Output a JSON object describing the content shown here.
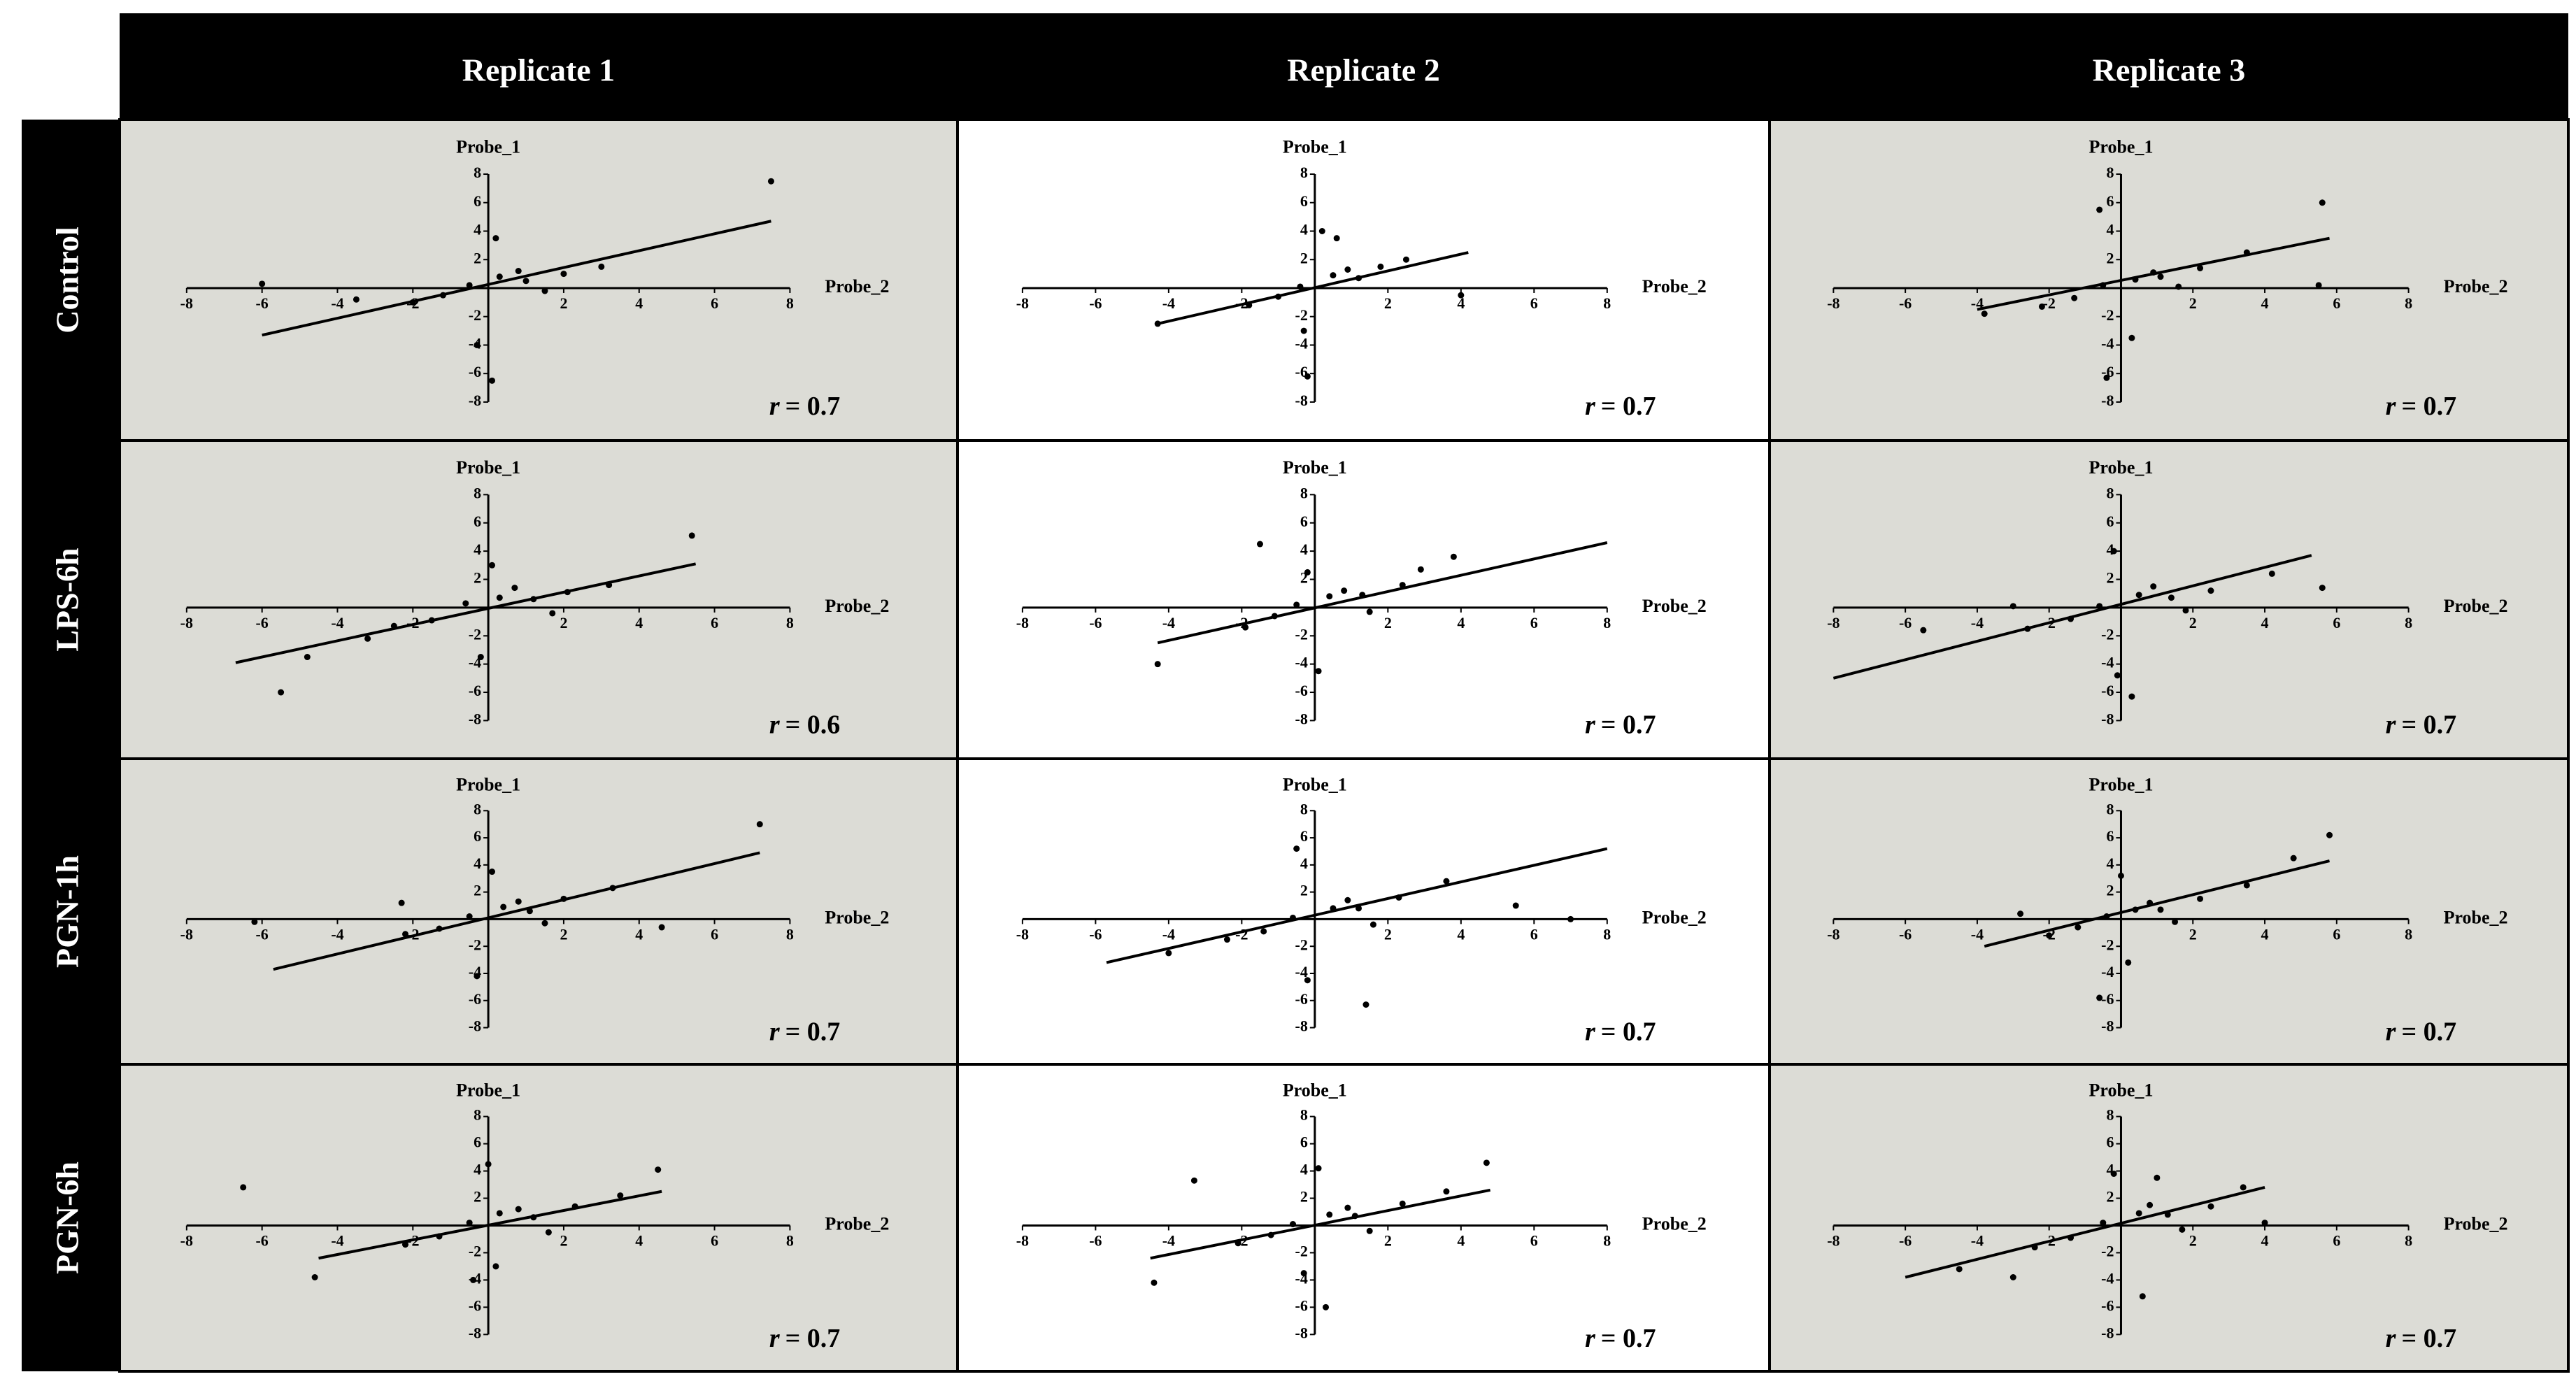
{
  "column_headers": [
    "Replicate 1",
    "Replicate 2",
    "Replicate 3"
  ],
  "row_labels": [
    "Control",
    "LPS-6h",
    "PGN-1h",
    "PGN-6h"
  ],
  "chart_data": [
    {
      "type": "scatter",
      "xlabel": "Probe_2",
      "ylabel": "Probe_1",
      "background": "#dcdcd6",
      "color": "#000000",
      "xlim": [
        -8,
        8
      ],
      "ylim": [
        -8,
        8
      ],
      "xticks": [
        -8,
        -6,
        -4,
        -2,
        2,
        4,
        6,
        8
      ],
      "yticks": [
        -8,
        -6,
        -4,
        -2,
        2,
        4,
        6,
        8
      ],
      "annotation": {
        "symbol": "r",
        "text": "= 0.7"
      },
      "x": [
        -0.5,
        0.3,
        1,
        -1.2,
        0.8,
        2,
        -2,
        1.5,
        0.2,
        3,
        -0.3,
        7.5,
        0.1,
        -3.5,
        -6
      ],
      "y": [
        0.2,
        0.8,
        0.5,
        -0.5,
        1.2,
        1,
        -1,
        -0.2,
        3.5,
        1.5,
        -4,
        7.5,
        -6.5,
        -0.8,
        0.3
      ],
      "fit_line": {
        "x": [
          -6,
          7.5
        ],
        "y": [
          -3.3,
          4.7
        ]
      }
    },
    {
      "type": "scatter",
      "xlabel": "Probe_2",
      "ylabel": "Probe_1",
      "background": "#ffffff",
      "color": "#000000",
      "xlim": [
        -8,
        8
      ],
      "ylim": [
        -8,
        8
      ],
      "xticks": [
        -8,
        -6,
        -4,
        -2,
        2,
        4,
        6,
        8
      ],
      "yticks": [
        -8,
        -6,
        -4,
        -2,
        2,
        4,
        6,
        8
      ],
      "annotation": {
        "symbol": "r",
        "text": "= 0.7"
      },
      "x": [
        -0.4,
        0.5,
        1.2,
        -1,
        0.9,
        1.8,
        -1.8,
        0.2,
        -0.3,
        2.5,
        4,
        -4.3,
        0.6,
        -0.2
      ],
      "y": [
        0.1,
        0.9,
        0.7,
        -0.6,
        1.3,
        1.5,
        -1.2,
        4,
        -3,
        2,
        -0.5,
        -2.5,
        3.5,
        -6.2
      ],
      "fit_line": {
        "x": [
          -4.3,
          4.2
        ],
        "y": [
          -2.5,
          2.5
        ]
      }
    },
    {
      "type": "scatter",
      "xlabel": "Probe_2",
      "ylabel": "Probe_1",
      "background": "#dcdcd6",
      "color": "#000000",
      "xlim": [
        -8,
        8
      ],
      "ylim": [
        -8,
        8
      ],
      "xticks": [
        -8,
        -6,
        -4,
        -2,
        2,
        4,
        6,
        8
      ],
      "yticks": [
        -8,
        -6,
        -4,
        -2,
        2,
        4,
        6,
        8
      ],
      "annotation": {
        "symbol": "r",
        "text": "= 0.7"
      },
      "x": [
        -0.5,
        0.4,
        1.1,
        -1.3,
        0.9,
        2.2,
        -2.2,
        1.6,
        -0.6,
        3.5,
        5.6,
        -3.8,
        0.3,
        -0.4,
        5.5
      ],
      "y": [
        0.2,
        0.6,
        0.8,
        -0.7,
        1.1,
        1.4,
        -1.3,
        0.1,
        5.5,
        2.5,
        6,
        -1.8,
        -3.5,
        -6.3,
        0.2
      ],
      "fit_line": {
        "x": [
          -4,
          5.8
        ],
        "y": [
          -1.5,
          3.5
        ]
      }
    },
    {
      "type": "scatter",
      "xlabel": "Probe_2",
      "ylabel": "Probe_1",
      "background": "#dcdcd6",
      "color": "#000000",
      "xlim": [
        -8,
        8
      ],
      "ylim": [
        -8,
        8
      ],
      "xticks": [
        -8,
        -6,
        -4,
        -2,
        2,
        4,
        6,
        8
      ],
      "yticks": [
        -8,
        -6,
        -4,
        -2,
        2,
        4,
        6,
        8
      ],
      "annotation": {
        "symbol": "r",
        "text": "= 0.6"
      },
      "x": [
        -0.6,
        0.3,
        1.2,
        -1.5,
        0.7,
        2.1,
        -2.5,
        1.7,
        0.1,
        3.2,
        -5.5,
        5.4,
        -0.2,
        -3.2,
        -4.8
      ],
      "y": [
        0.3,
        0.7,
        0.6,
        -0.9,
        1.4,
        1.1,
        -1.3,
        -0.4,
        3,
        1.6,
        -6,
        5.1,
        -3.5,
        -2.2,
        -3.5
      ],
      "fit_line": {
        "x": [
          -6.7,
          5.5
        ],
        "y": [
          -3.9,
          3.1
        ]
      }
    },
    {
      "type": "scatter",
      "xlabel": "Probe_2",
      "ylabel": "Probe_1",
      "background": "#ffffff",
      "color": "#000000",
      "xlim": [
        -8,
        8
      ],
      "ylim": [
        -8,
        8
      ],
      "xticks": [
        -8,
        -6,
        -4,
        -2,
        2,
        4,
        6,
        8
      ],
      "yticks": [
        -8,
        -6,
        -4,
        -2,
        2,
        4,
        6,
        8
      ],
      "annotation": {
        "symbol": "r",
        "text": "= 0.7"
      },
      "x": [
        -0.5,
        0.4,
        1.3,
        -1.1,
        0.8,
        2.4,
        -1.9,
        1.5,
        -1.5,
        3.8,
        -4.3,
        0.1,
        -0.2,
        2.9
      ],
      "y": [
        0.2,
        0.8,
        0.9,
        -0.6,
        1.2,
        1.6,
        -1.4,
        -0.3,
        4.5,
        3.6,
        -4,
        -4.5,
        2.5,
        2.7
      ],
      "fit_line": {
        "x": [
          -4.3,
          8
        ],
        "y": [
          -2.5,
          4.6
        ]
      }
    },
    {
      "type": "scatter",
      "xlabel": "Probe_2",
      "ylabel": "Probe_1",
      "background": "#dcdcd6",
      "color": "#000000",
      "xlim": [
        -8,
        8
      ],
      "ylim": [
        -8,
        8
      ],
      "xticks": [
        -8,
        -6,
        -4,
        -2,
        2,
        4,
        6,
        8
      ],
      "yticks": [
        -8,
        -6,
        -4,
        -2,
        2,
        4,
        6,
        8
      ],
      "annotation": {
        "symbol": "r",
        "text": "= 0.7"
      },
      "x": [
        -0.6,
        0.5,
        1.4,
        -1.4,
        0.9,
        2.5,
        -2.6,
        1.8,
        -0.2,
        4.2,
        5.6,
        -5.5,
        -3,
        0.3,
        -0.1
      ],
      "y": [
        0.1,
        0.9,
        0.7,
        -0.8,
        1.5,
        1.2,
        -1.5,
        -0.2,
        4,
        2.4,
        1.4,
        -1.6,
        0.1,
        -6.3,
        -4.8
      ],
      "fit_line": {
        "x": [
          -8,
          5.3
        ],
        "y": [
          -5,
          3.7
        ]
      }
    },
    {
      "type": "scatter",
      "xlabel": "Probe_2",
      "ylabel": "Probe_1",
      "background": "#dcdcd6",
      "color": "#000000",
      "xlim": [
        -8,
        8
      ],
      "ylim": [
        -8,
        8
      ],
      "xticks": [
        -8,
        -6,
        -4,
        -2,
        2,
        4,
        6,
        8
      ],
      "yticks": [
        -8,
        -6,
        -4,
        -2,
        2,
        4,
        6,
        8
      ],
      "annotation": {
        "symbol": "r",
        "text": "= 0.7"
      },
      "x": [
        -0.5,
        0.4,
        1.1,
        -1.3,
        0.8,
        2,
        -2.2,
        1.5,
        0.1,
        3.3,
        7.2,
        -2.3,
        -6.2,
        4.6,
        -0.3
      ],
      "y": [
        0.2,
        0.9,
        0.6,
        -0.7,
        1.3,
        1.5,
        -1.1,
        -0.3,
        3.5,
        2.3,
        7,
        1.2,
        -0.2,
        -0.6,
        -4.2
      ],
      "fit_line": {
        "x": [
          -5.7,
          7.2
        ],
        "y": [
          -3.7,
          4.9
        ]
      }
    },
    {
      "type": "scatter",
      "xlabel": "Probe_2",
      "ylabel": "Probe_1",
      "background": "#ffffff",
      "color": "#000000",
      "xlim": [
        -8,
        8
      ],
      "ylim": [
        -8,
        8
      ],
      "xticks": [
        -8,
        -6,
        -4,
        -2,
        2,
        4,
        6,
        8
      ],
      "yticks": [
        -8,
        -6,
        -4,
        -2,
        2,
        4,
        6,
        8
      ],
      "annotation": {
        "symbol": "r",
        "text": "= 0.7"
      },
      "x": [
        -0.6,
        0.5,
        1.2,
        -1.4,
        0.9,
        2.3,
        -2.4,
        1.6,
        -0.5,
        3.6,
        5.5,
        -4,
        1.4,
        -0.2,
        7
      ],
      "y": [
        0.1,
        0.8,
        0.8,
        -0.9,
        1.4,
        1.6,
        -1.5,
        -0.4,
        5.2,
        2.8,
        1,
        -2.5,
        -6.3,
        -4.5,
        0
      ],
      "fit_line": {
        "x": [
          -5.7,
          8
        ],
        "y": [
          -3.2,
          5.2
        ]
      }
    },
    {
      "type": "scatter",
      "xlabel": "Probe_2",
      "ylabel": "Probe_1",
      "background": "#dcdcd6",
      "color": "#000000",
      "xlim": [
        -8,
        8
      ],
      "ylim": [
        -8,
        8
      ],
      "xticks": [
        -8,
        -6,
        -4,
        -2,
        2,
        4,
        6,
        8
      ],
      "yticks": [
        -8,
        -6,
        -4,
        -2,
        2,
        4,
        6,
        8
      ],
      "annotation": {
        "symbol": "r",
        "text": "= 0.7"
      },
      "x": [
        -0.4,
        0.4,
        1.1,
        -1.2,
        0.8,
        2.2,
        -2,
        1.5,
        0,
        3.5,
        5.8,
        -2.8,
        -0.6,
        4.8,
        0.2
      ],
      "y": [
        0.2,
        0.7,
        0.7,
        -0.6,
        1.2,
        1.5,
        -1.2,
        -0.2,
        3.2,
        2.5,
        6.2,
        0.4,
        -5.8,
        4.5,
        -3.2
      ],
      "fit_line": {
        "x": [
          -3.8,
          5.8
        ],
        "y": [
          -2,
          4.3
        ]
      }
    },
    {
      "type": "scatter",
      "xlabel": "Probe_2",
      "ylabel": "Probe_1",
      "background": "#dcdcd6",
      "color": "#000000",
      "xlim": [
        -8,
        8
      ],
      "ylim": [
        -8,
        8
      ],
      "xticks": [
        -8,
        -6,
        -4,
        -2,
        2,
        4,
        6,
        8
      ],
      "yticks": [
        -8,
        -6,
        -4,
        -2,
        2,
        4,
        6,
        8
      ],
      "annotation": {
        "symbol": "r",
        "text": "= 0.7"
      },
      "x": [
        -0.5,
        0.3,
        1.2,
        -1.3,
        0.8,
        2.3,
        -2.2,
        1.6,
        0,
        3.5,
        4.5,
        -6.5,
        -4.6,
        -0.4,
        0.2
      ],
      "y": [
        0.2,
        0.9,
        0.6,
        -0.8,
        1.2,
        1.4,
        -1.4,
        -0.5,
        4.5,
        2.2,
        4.1,
        2.8,
        -3.8,
        -4,
        -3
      ],
      "fit_line": {
        "x": [
          -4.5,
          4.6
        ],
        "y": [
          -2.4,
          2.5
        ]
      }
    },
    {
      "type": "scatter",
      "xlabel": "Probe_2",
      "ylabel": "Probe_1",
      "background": "#ffffff",
      "color": "#000000",
      "xlim": [
        -8,
        8
      ],
      "ylim": [
        -8,
        8
      ],
      "xticks": [
        -8,
        -6,
        -4,
        -2,
        2,
        4,
        6,
        8
      ],
      "yticks": [
        -8,
        -6,
        -4,
        -2,
        2,
        4,
        6,
        8
      ],
      "annotation": {
        "symbol": "r",
        "text": "= 0.7"
      },
      "x": [
        -0.6,
        0.4,
        1.1,
        -1.2,
        0.9,
        2.4,
        -2.1,
        1.5,
        0.1,
        3.6,
        4.7,
        -4.4,
        -3.3,
        0.3,
        -0.3
      ],
      "y": [
        0.1,
        0.8,
        0.7,
        -0.7,
        1.3,
        1.6,
        -1.3,
        -0.4,
        4.2,
        2.5,
        4.6,
        -4.2,
        3.3,
        -6,
        -3.5
      ],
      "fit_line": {
        "x": [
          -4.5,
          4.8
        ],
        "y": [
          -2.4,
          2.6
        ]
      }
    },
    {
      "type": "scatter",
      "xlabel": "Probe_2",
      "ylabel": "Probe_1",
      "background": "#dcdcd6",
      "color": "#000000",
      "xlim": [
        -8,
        8
      ],
      "ylim": [
        -8,
        8
      ],
      "xticks": [
        -8,
        -6,
        -4,
        -2,
        2,
        4,
        6,
        8
      ],
      "yticks": [
        -8,
        -6,
        -4,
        -2,
        2,
        4,
        6,
        8
      ],
      "annotation": {
        "symbol": "r",
        "text": "= 0.7"
      },
      "x": [
        -0.5,
        0.5,
        1.3,
        -1.4,
        0.8,
        2.5,
        -2.4,
        1.7,
        -0.2,
        3.4,
        -4.5,
        -3,
        0.6,
        4,
        1
      ],
      "y": [
        0.2,
        0.9,
        0.8,
        -0.9,
        1.5,
        1.4,
        -1.6,
        -0.3,
        3.8,
        2.8,
        -3.2,
        -3.8,
        -5.2,
        0.2,
        3.5
      ],
      "fit_line": {
        "x": [
          -6,
          4
        ],
        "y": [
          -3.8,
          2.8
        ]
      }
    }
  ]
}
